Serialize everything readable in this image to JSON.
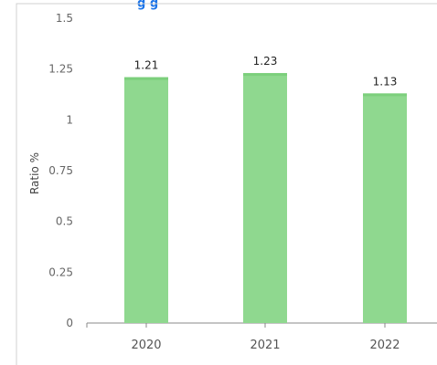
{
  "title": "g       g",
  "chart_data": {
    "type": "bar",
    "title": "g       g",
    "xlabel": "",
    "ylabel": "Ratio %",
    "categories": [
      "2020",
      "2021",
      "2022"
    ],
    "values": [
      1.21,
      1.23,
      1.13
    ],
    "data_labels": [
      "1.21",
      "1.23",
      "1.13"
    ],
    "ylim": [
      0,
      1.5
    ],
    "yticks": [
      0,
      0.25,
      0.5,
      0.75,
      1,
      1.25,
      1.5
    ],
    "ytick_labels": [
      "0",
      "0.25",
      "0.5",
      "0.75",
      "1",
      "1.25",
      "1.5"
    ],
    "grid": false,
    "legend": "none"
  },
  "colors": {
    "bar": "#8fd88f",
    "bar_top": "#7ccf7c",
    "border": "#d0d0d0",
    "axis": "#888888",
    "title": "#1a73e8"
  }
}
